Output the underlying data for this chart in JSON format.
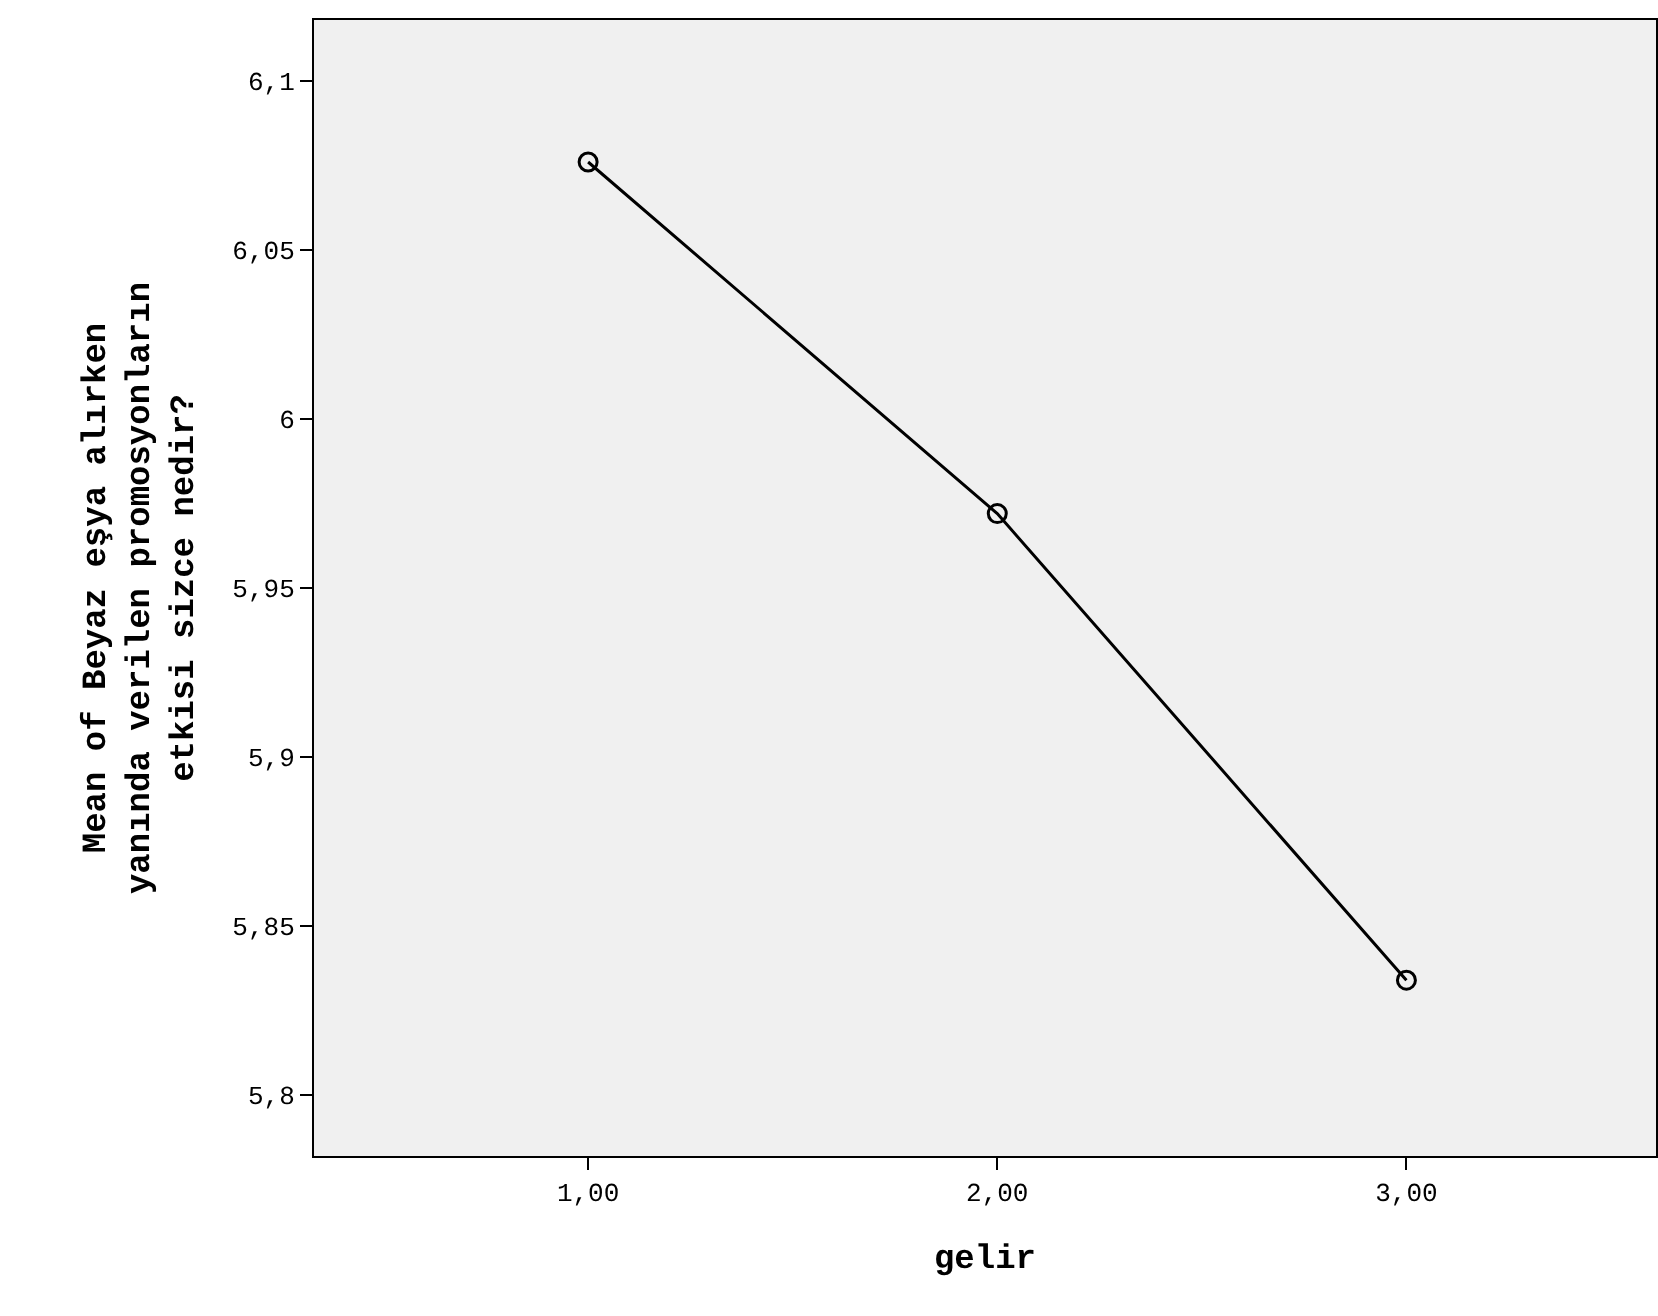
{
  "chart_data": {
    "type": "line",
    "xlabel": "gelir",
    "ylabel": "Mean of Beyaz eşya alırken\nyanında verilen promosyonların\netkisi sizce nedir?",
    "x": [
      1,
      2,
      3
    ],
    "values": [
      6.076,
      5.972,
      5.834
    ],
    "color": "#000000",
    "marker": "circle",
    "line_style": "solid",
    "xlim": [
      0.33,
      3.61
    ],
    "xticks": [
      {
        "value": 1,
        "label": "1,00"
      },
      {
        "value": 2,
        "label": "2,00"
      },
      {
        "value": 3,
        "label": "3,00"
      }
    ],
    "ylim": [
      5.782,
      6.118
    ],
    "yticks": [
      {
        "value": 5.8,
        "label": "5,8"
      },
      {
        "value": 5.85,
        "label": "5,85"
      },
      {
        "value": 5.9,
        "label": "5,9"
      },
      {
        "value": 5.95,
        "label": "5,95"
      },
      {
        "value": 6,
        "label": "6"
      },
      {
        "value": 6.05,
        "label": "6,05"
      },
      {
        "value": 6.1,
        "label": "6,1"
      }
    ]
  }
}
